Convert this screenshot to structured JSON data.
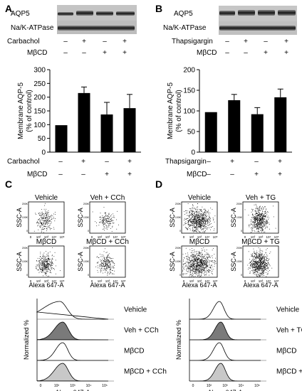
{
  "panels": {
    "A": {
      "letter": "A",
      "blot_labels": [
        "AQP5",
        "Na/K-ATPase"
      ],
      "treatment_rows": [
        {
          "label": "Carbachol",
          "signs": [
            "–",
            "+",
            "–",
            "+"
          ]
        },
        {
          "label": "MβCD",
          "signs": [
            "–",
            "–",
            "+",
            "+"
          ]
        }
      ]
    },
    "B": {
      "letter": "B",
      "blot_labels": [
        "AQP5",
        "Na/K-ATPase"
      ],
      "treatment_rows": [
        {
          "label": "Thapsigargin",
          "signs": [
            "–",
            "+",
            "–",
            "+"
          ]
        },
        {
          "label": "MβCD",
          "signs": [
            "–",
            "–",
            "+",
            "+"
          ]
        }
      ]
    },
    "C": {
      "letter": "C",
      "scatter_titles": [
        "Vehicle",
        "Veh + CCh",
        "MβCD",
        "MβCD + CCh"
      ],
      "histogram_labels": [
        "Vehicle",
        "Veh + CCh",
        "MβCD",
        "MβCD + CCh"
      ]
    },
    "D": {
      "letter": "D",
      "scatter_titles": [
        "Vehicle",
        "Veh + TG",
        "MβCD",
        "MβCD + TG"
      ],
      "histogram_labels": [
        "Vehicle",
        "Veh + TG",
        "MβCD",
        "MβCD + TG"
      ]
    }
  },
  "flow_axes": {
    "x_title": "Alexa 647-A",
    "y_title": "SSC-A",
    "hist_y_title": "Normalized %",
    "x_ticks": [
      "0",
      "10²",
      "10³",
      "10⁴",
      "10⁵"
    ],
    "y_ticks": [
      "0",
      "100K",
      "200K"
    ]
  },
  "chart_data": [
    {
      "type": "bar",
      "panel": "A",
      "categories": [
        "–/–",
        "+/–",
        "–/+",
        "+/+"
      ],
      "values": [
        98,
        215,
        137,
        160
      ],
      "errors": [
        0,
        22,
        44,
        50
      ],
      "ylabel": "Membrane AQP-5\n(% of control)",
      "ylim": [
        0,
        300
      ],
      "yticks": [
        0,
        50,
        100,
        150,
        200,
        250,
        300
      ],
      "grid": false,
      "color": "#000000"
    },
    {
      "type": "bar",
      "panel": "B",
      "categories": [
        "–/–",
        "+/–",
        "–/+",
        "+/+"
      ],
      "values": [
        97,
        126,
        92,
        133
      ],
      "errors": [
        0,
        14,
        16,
        20
      ],
      "ylabel": "Membrane AQP-5\n(% of control)",
      "ylim": [
        0,
        200
      ],
      "yticks": [
        0,
        50,
        100,
        150,
        200
      ],
      "grid": false,
      "color": "#000000"
    }
  ]
}
